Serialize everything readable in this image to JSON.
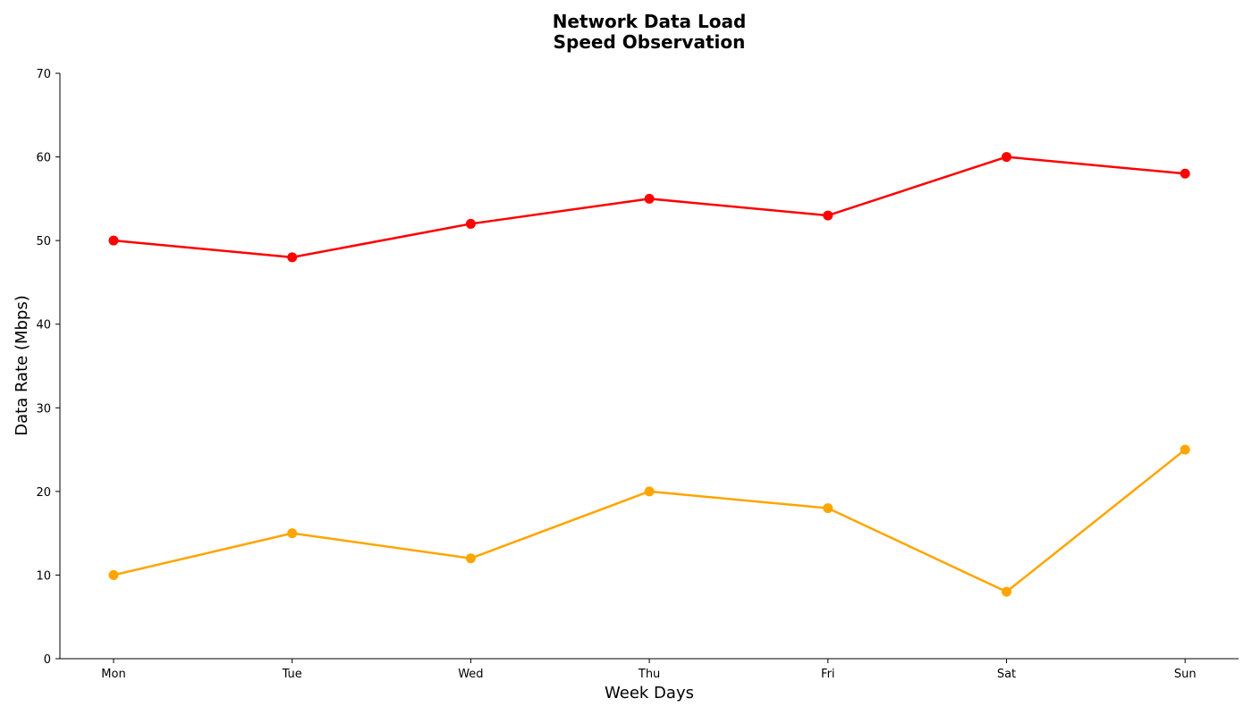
{
  "chart_data": {
    "type": "line",
    "title_lines": [
      "Network Data Load",
      "Speed Observation"
    ],
    "xlabel": "Week Days",
    "ylabel": "Data Rate (Mbps)",
    "categories": [
      "Mon",
      "Tue",
      "Wed",
      "Thu",
      "Fri",
      "Sat",
      "Sun"
    ],
    "ylim": [
      0,
      70
    ],
    "yticks": [
      0,
      10,
      20,
      30,
      40,
      50,
      60,
      70
    ],
    "grid": false,
    "legend": "none",
    "series": [
      {
        "values": [
          50,
          48,
          52,
          55,
          53,
          60,
          58
        ],
        "color": "#ff0000"
      },
      {
        "values": [
          10,
          15,
          12,
          20,
          18,
          8,
          25
        ],
        "color": "#ffa500"
      }
    ]
  }
}
